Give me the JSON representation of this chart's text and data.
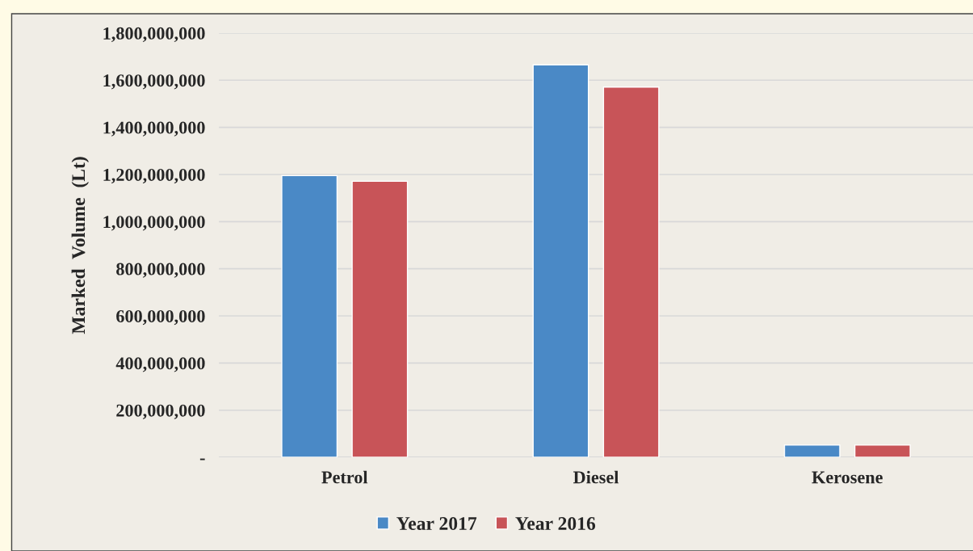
{
  "chart_data": {
    "type": "bar",
    "ylabel": "Marked  Volume  (Lt)",
    "categories": [
      "Petrol",
      "Diesel",
      "Kerosene"
    ],
    "series": [
      {
        "name": "Year 2017",
        "color": "#4a89c6",
        "values": [
          1195000000,
          1665000000,
          52000000
        ]
      },
      {
        "name": "Year 2016",
        "color": "#c85458",
        "values": [
          1171000000,
          1571000000,
          52000000
        ]
      }
    ],
    "ylim": [
      0,
      1800000000
    ],
    "yticks": [
      {
        "value": 0,
        "label": "-"
      },
      {
        "value": 200000000,
        "label": "200,000,000"
      },
      {
        "value": 400000000,
        "label": "400,000,000"
      },
      {
        "value": 600000000,
        "label": "600,000,000"
      },
      {
        "value": 800000000,
        "label": "800,000,000"
      },
      {
        "value": 1000000000,
        "label": "1,000,000,000"
      },
      {
        "value": 1200000000,
        "label": "1,200,000,000"
      },
      {
        "value": 1400000000,
        "label": "1,400,000,000"
      },
      {
        "value": 1600000000,
        "label": "1,600,000,000"
      },
      {
        "value": 1800000000,
        "label": "1,800,000,000"
      }
    ],
    "grid": "y",
    "legend": "bottom"
  }
}
